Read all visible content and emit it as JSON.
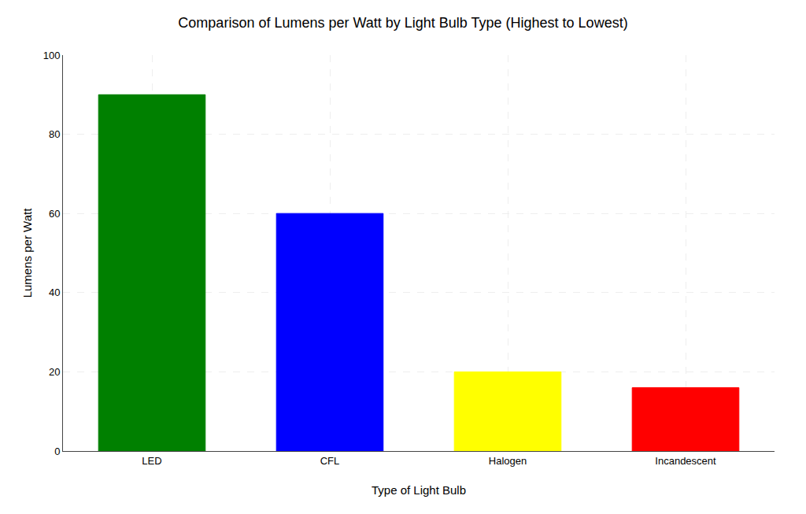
{
  "chart_data": {
    "type": "bar",
    "title": "Comparison of Lumens per Watt by Light Bulb Type (Highest to Lowest)",
    "xlabel": "Type of Light Bulb",
    "ylabel": "Lumens per Watt",
    "categories": [
      "LED",
      "CFL",
      "Halogen",
      "Incandescent"
    ],
    "values": [
      90,
      60,
      20,
      16
    ],
    "colors": [
      "#008000",
      "#0000FF",
      "#FFFF00",
      "#FF0000"
    ],
    "ylim": [
      0,
      100
    ],
    "yticks": [
      0,
      20,
      40,
      60,
      80,
      100
    ],
    "grid": true
  }
}
